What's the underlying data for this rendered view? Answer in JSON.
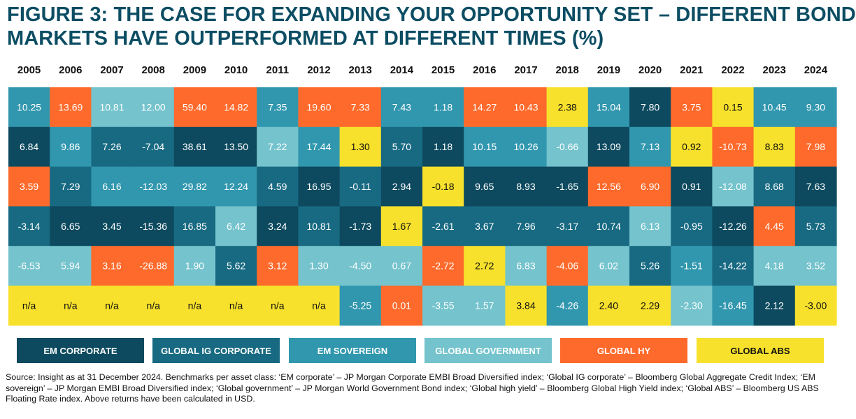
{
  "title_line1": "FIGURE 3: THE CASE FOR EXPANDING YOUR OPPORTUNITY SET – DIFFERENT BOND",
  "title_line2": "MARKETS HAVE OUTPERFORMED AT DIFFERENT TIMES (%)",
  "colors": {
    "em_corporate": "#0d4a5f",
    "global_ig_corporate": "#186a82",
    "em_sovereign": "#3197ae",
    "global_government": "#74c3cd",
    "global_hy": "#fe6a2b",
    "global_abs": "#f7e12c"
  },
  "chart_data": {
    "type": "table",
    "title": "The case for expanding your opportunity set – different bond markets have outperformed at different times (%)",
    "years": [
      "2005",
      "2006",
      "2007",
      "2008",
      "2009",
      "2010",
      "2011",
      "2012",
      "2013",
      "2014",
      "2015",
      "2016",
      "2017",
      "2018",
      "2019",
      "2020",
      "2021",
      "2022",
      "2023",
      "2024"
    ],
    "columns": [
      [
        {
          "v": "10.25",
          "c": "em_sovereign"
        },
        {
          "v": "6.84",
          "c": "em_corporate"
        },
        {
          "v": "3.59",
          "c": "global_hy"
        },
        {
          "v": "-3.14",
          "c": "global_ig_corporate"
        },
        {
          "v": "-6.53",
          "c": "global_government"
        },
        {
          "v": "n/a",
          "c": "global_abs"
        }
      ],
      [
        {
          "v": "13.69",
          "c": "global_hy"
        },
        {
          "v": "9.86",
          "c": "em_sovereign"
        },
        {
          "v": "7.29",
          "c": "global_ig_corporate"
        },
        {
          "v": "6.65",
          "c": "em_corporate"
        },
        {
          "v": "5.94",
          "c": "global_government"
        },
        {
          "v": "n/a",
          "c": "global_abs"
        }
      ],
      [
        {
          "v": "10.81",
          "c": "global_government"
        },
        {
          "v": "7.26",
          "c": "global_ig_corporate"
        },
        {
          "v": "6.16",
          "c": "em_sovereign"
        },
        {
          "v": "3.45",
          "c": "em_corporate"
        },
        {
          "v": "3.16",
          "c": "global_hy"
        },
        {
          "v": "n/a",
          "c": "global_abs"
        }
      ],
      [
        {
          "v": "12.00",
          "c": "global_government"
        },
        {
          "v": "-7.04",
          "c": "global_ig_corporate"
        },
        {
          "v": "-12.03",
          "c": "em_sovereign"
        },
        {
          "v": "-15.36",
          "c": "em_corporate"
        },
        {
          "v": "-26.88",
          "c": "global_hy"
        },
        {
          "v": "n/a",
          "c": "global_abs"
        }
      ],
      [
        {
          "v": "59.40",
          "c": "global_hy"
        },
        {
          "v": "38.61",
          "c": "em_corporate"
        },
        {
          "v": "29.82",
          "c": "em_sovereign"
        },
        {
          "v": "16.85",
          "c": "global_ig_corporate"
        },
        {
          "v": "1.90",
          "c": "global_government"
        },
        {
          "v": "n/a",
          "c": "global_abs"
        }
      ],
      [
        {
          "v": "14.82",
          "c": "global_hy"
        },
        {
          "v": "13.50",
          "c": "em_corporate"
        },
        {
          "v": "12.24",
          "c": "em_sovereign"
        },
        {
          "v": "6.42",
          "c": "global_government"
        },
        {
          "v": "5.62",
          "c": "global_ig_corporate"
        },
        {
          "v": "n/a",
          "c": "global_abs"
        }
      ],
      [
        {
          "v": "7.35",
          "c": "em_sovereign"
        },
        {
          "v": "7.22",
          "c": "global_government"
        },
        {
          "v": "4.59",
          "c": "global_ig_corporate"
        },
        {
          "v": "3.24",
          "c": "em_corporate"
        },
        {
          "v": "3.12",
          "c": "global_hy"
        },
        {
          "v": "n/a",
          "c": "global_abs"
        }
      ],
      [
        {
          "v": "19.60",
          "c": "global_hy"
        },
        {
          "v": "17.44",
          "c": "em_sovereign"
        },
        {
          "v": "16.95",
          "c": "em_corporate"
        },
        {
          "v": "10.81",
          "c": "global_ig_corporate"
        },
        {
          "v": "1.30",
          "c": "global_government"
        },
        {
          "v": "n/a",
          "c": "global_abs"
        }
      ],
      [
        {
          "v": "7.33",
          "c": "global_hy"
        },
        {
          "v": "1.30",
          "c": "global_abs"
        },
        {
          "v": "-0.11",
          "c": "global_ig_corporate"
        },
        {
          "v": "-1.73",
          "c": "em_corporate"
        },
        {
          "v": "-4.50",
          "c": "global_government"
        },
        {
          "v": "-5.25",
          "c": "em_sovereign"
        }
      ],
      [
        {
          "v": "7.43",
          "c": "em_sovereign"
        },
        {
          "v": "5.70",
          "c": "global_ig_corporate"
        },
        {
          "v": "2.94",
          "c": "em_corporate"
        },
        {
          "v": "1.67",
          "c": "global_abs"
        },
        {
          "v": "0.67",
          "c": "global_government"
        },
        {
          "v": "0.01",
          "c": "global_hy"
        }
      ],
      [
        {
          "v": "1.18",
          "c": "em_sovereign"
        },
        {
          "v": "1.18",
          "c": "em_corporate"
        },
        {
          "v": "-0.18",
          "c": "global_abs"
        },
        {
          "v": "-2.61",
          "c": "global_ig_corporate"
        },
        {
          "v": "-2.72",
          "c": "global_hy"
        },
        {
          "v": "-3.55",
          "c": "global_government"
        }
      ],
      [
        {
          "v": "14.27",
          "c": "global_hy"
        },
        {
          "v": "10.15",
          "c": "em_sovereign"
        },
        {
          "v": "9.65",
          "c": "em_corporate"
        },
        {
          "v": "3.67",
          "c": "global_ig_corporate"
        },
        {
          "v": "2.72",
          "c": "global_abs"
        },
        {
          "v": "1.57",
          "c": "global_government"
        }
      ],
      [
        {
          "v": "10.43",
          "c": "global_hy"
        },
        {
          "v": "10.26",
          "c": "em_sovereign"
        },
        {
          "v": "8.93",
          "c": "em_corporate"
        },
        {
          "v": "7.96",
          "c": "global_ig_corporate"
        },
        {
          "v": "6.83",
          "c": "global_government"
        },
        {
          "v": "3.84",
          "c": "global_abs"
        }
      ],
      [
        {
          "v": "2.38",
          "c": "global_abs"
        },
        {
          "v": "-0.66",
          "c": "global_government"
        },
        {
          "v": "-1.65",
          "c": "em_corporate"
        },
        {
          "v": "-3.17",
          "c": "global_ig_corporate"
        },
        {
          "v": "-4.06",
          "c": "global_hy"
        },
        {
          "v": "-4.26",
          "c": "em_sovereign"
        }
      ],
      [
        {
          "v": "15.04",
          "c": "em_sovereign"
        },
        {
          "v": "13.09",
          "c": "em_corporate"
        },
        {
          "v": "12.56",
          "c": "global_hy"
        },
        {
          "v": "10.74",
          "c": "global_ig_corporate"
        },
        {
          "v": "6.02",
          "c": "global_government"
        },
        {
          "v": "2.40",
          "c": "global_abs"
        }
      ],
      [
        {
          "v": "7.80",
          "c": "em_corporate"
        },
        {
          "v": "7.13",
          "c": "em_sovereign"
        },
        {
          "v": "6.90",
          "c": "global_hy"
        },
        {
          "v": "6.13",
          "c": "global_government"
        },
        {
          "v": "5.26",
          "c": "global_ig_corporate"
        },
        {
          "v": "2.29",
          "c": "global_abs"
        }
      ],
      [
        {
          "v": "3.75",
          "c": "global_hy"
        },
        {
          "v": "0.92",
          "c": "global_abs"
        },
        {
          "v": "0.91",
          "c": "em_corporate"
        },
        {
          "v": "-0.95",
          "c": "global_ig_corporate"
        },
        {
          "v": "-1.51",
          "c": "em_sovereign"
        },
        {
          "v": "-2.30",
          "c": "global_government"
        }
      ],
      [
        {
          "v": "0.15",
          "c": "global_abs"
        },
        {
          "v": "-10.73",
          "c": "global_hy"
        },
        {
          "v": "-12.08",
          "c": "global_government"
        },
        {
          "v": "-12.26",
          "c": "em_corporate"
        },
        {
          "v": "-14.22",
          "c": "global_ig_corporate"
        },
        {
          "v": "-16.45",
          "c": "em_sovereign"
        }
      ],
      [
        {
          "v": "10.45",
          "c": "em_sovereign"
        },
        {
          "v": "8.83",
          "c": "global_abs"
        },
        {
          "v": "8.68",
          "c": "global_ig_corporate"
        },
        {
          "v": "4.45",
          "c": "global_hy"
        },
        {
          "v": "4.18",
          "c": "global_government"
        },
        {
          "v": "2.12",
          "c": "em_corporate"
        }
      ],
      [
        {
          "v": "9.30",
          "c": "em_sovereign"
        },
        {
          "v": "7.98",
          "c": "global_hy"
        },
        {
          "v": "7.63",
          "c": "em_corporate"
        },
        {
          "v": "5.73",
          "c": "global_ig_corporate"
        },
        {
          "v": "3.52",
          "c": "global_government"
        },
        {
          "v": "-3.00",
          "c": "global_abs"
        }
      ]
    ],
    "legend": [
      {
        "label": "EM CORPORATE",
        "c": "em_corporate"
      },
      {
        "label": "GLOBAL IG CORPORATE",
        "c": "global_ig_corporate"
      },
      {
        "label": "EM SOVEREIGN",
        "c": "em_sovereign"
      },
      {
        "label": "GLOBAL GOVERNMENT",
        "c": "global_government"
      },
      {
        "label": "GLOBAL HY",
        "c": "global_hy"
      },
      {
        "label": "GLOBAL ABS",
        "c": "global_abs"
      }
    ]
  },
  "source": "Source: Insight as at 31 December 2024. Benchmarks per asset class: ‘EM corporate’ – JP Morgan Corporate EMBI Broad Diversified index; ‘Global IG corporate’ – Bloomberg Global Aggregate Credit Index; ‘EM sovereign’ – JP Morgan EMBI Broad Diversified index; ‘Global government’ – JP Morgan World Government Bond index; ‘Global high yield’ – Bloomberg Global High Yield index; ‘Global ABS’ – Bloomberg US ABS Floating Rate index. Above returns have been calculated in USD."
}
